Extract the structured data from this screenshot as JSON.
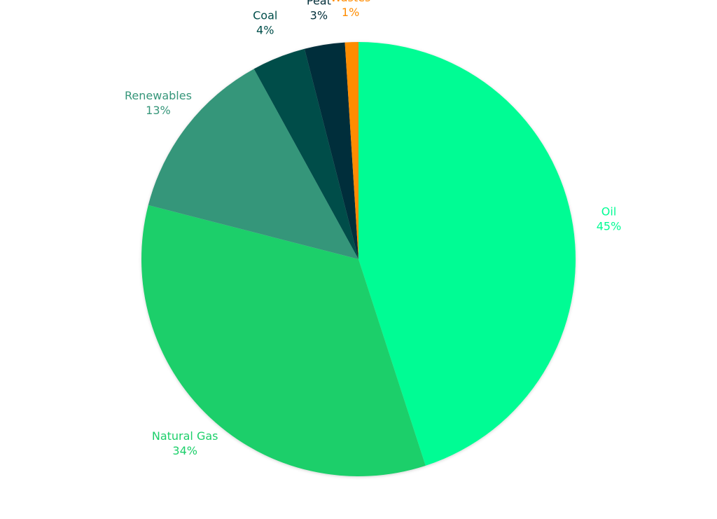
{
  "chart_data": {
    "type": "pie",
    "categories": [
      "Oil",
      "Natural Gas",
      "Renewables",
      "Coal",
      "Peat",
      "Wastes"
    ],
    "values": [
      45,
      34,
      13,
      4,
      3,
      1
    ],
    "value_labels": [
      "45%",
      "34%",
      "13%",
      "4%",
      "3%",
      "1%"
    ],
    "colors": [
      "#00fc94",
      "#1ccf6a",
      "#36967a",
      "#004e4a",
      "#032f3a",
      "#ff8c00"
    ]
  }
}
